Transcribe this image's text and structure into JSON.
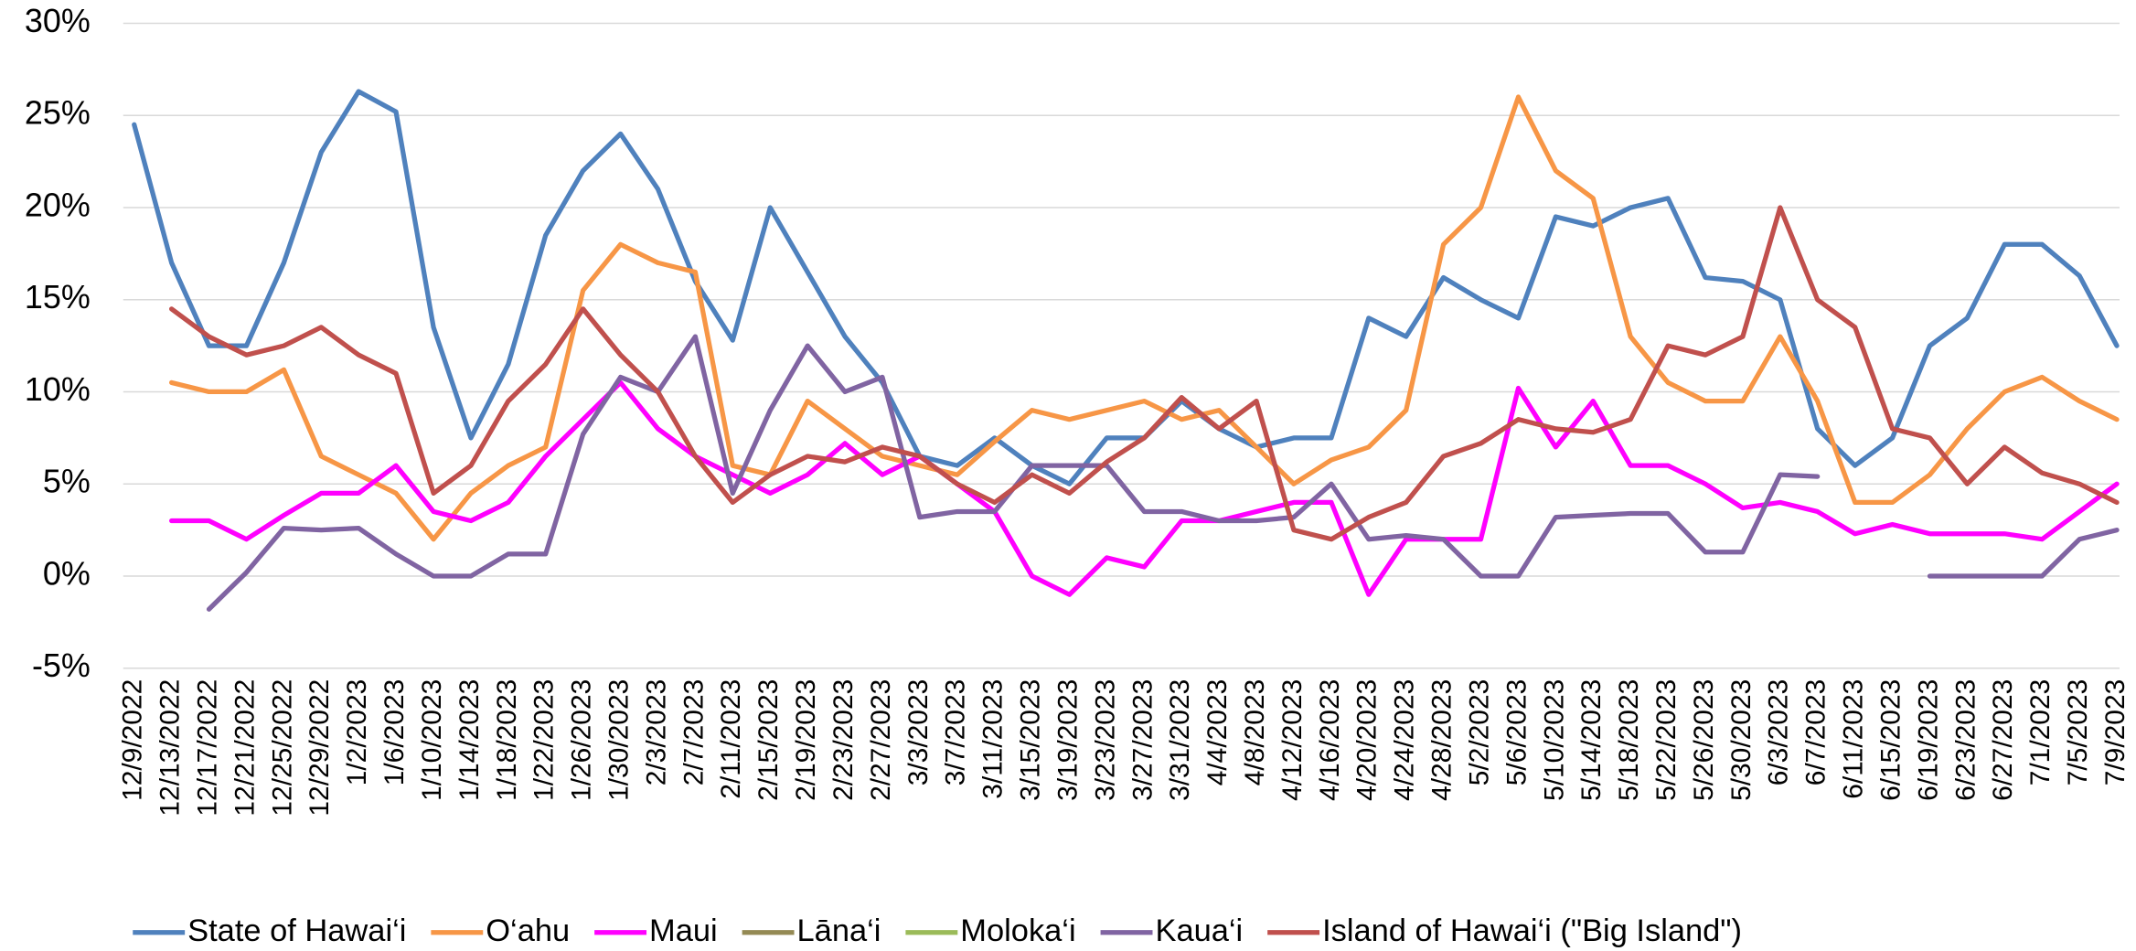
{
  "chart_data": {
    "type": "line",
    "categories": [
      "12/9/2022",
      "12/13/2022",
      "12/17/2022",
      "12/21/2022",
      "12/25/2022",
      "12/29/2022",
      "1/2/2023",
      "1/6/2023",
      "1/10/2023",
      "1/14/2023",
      "1/18/2023",
      "1/22/2023",
      "1/26/2023",
      "1/30/2023",
      "2/3/2023",
      "2/7/2023",
      "2/11/2023",
      "2/15/2023",
      "2/19/2023",
      "2/23/2023",
      "2/27/2023",
      "3/3/2023",
      "3/7/2023",
      "3/11/2023",
      "3/15/2023",
      "3/19/2023",
      "3/23/2023",
      "3/27/2023",
      "3/31/2023",
      "4/4/2023",
      "4/8/2023",
      "4/12/2023",
      "4/16/2023",
      "4/20/2023",
      "4/24/2023",
      "4/28/2023",
      "5/2/2023",
      "5/6/2023",
      "5/10/2023",
      "5/14/2023",
      "5/18/2023",
      "5/22/2023",
      "5/26/2023",
      "5/30/2023",
      "6/3/2023",
      "6/7/2023",
      "6/11/2023",
      "6/15/2023",
      "6/19/2023",
      "6/23/2023",
      "6/27/2023",
      "7/1/2023",
      "7/5/2023",
      "7/9/2023"
    ],
    "series": [
      {
        "name": "State of Hawai‘i",
        "color": "#4f81bd",
        "values": [
          24.5,
          17,
          12.5,
          12.5,
          17,
          23,
          26.3,
          25.2,
          13.5,
          7.5,
          11.5,
          18.5,
          22,
          24,
          21,
          16,
          12.8,
          20,
          16.5,
          13,
          10.5,
          6.5,
          6,
          7.5,
          6,
          5,
          7.5,
          7.5,
          9.5,
          8,
          7,
          7.5,
          7.5,
          14,
          13,
          16.2,
          15,
          14,
          19.5,
          19,
          20,
          20.5,
          16.2,
          16,
          15,
          8,
          6,
          7.5,
          12.5,
          14,
          18,
          18,
          16.3,
          12.5
        ]
      },
      {
        "name": "O‘ahu",
        "color": "#f79646",
        "values": [
          null,
          10.5,
          10,
          10,
          11.2,
          6.5,
          5.5,
          4.5,
          2,
          4.5,
          6,
          7,
          15.5,
          18,
          17,
          16.5,
          6,
          5.5,
          9.5,
          8,
          6.5,
          6,
          5.5,
          7.3,
          9,
          8.5,
          9,
          9.5,
          8.5,
          9,
          7,
          5,
          6.3,
          7,
          9,
          18,
          20,
          26,
          22,
          20.5,
          13,
          10.5,
          9.5,
          9.5,
          13,
          9.5,
          4,
          4,
          5.5,
          8,
          10,
          10.8,
          9.5,
          8.5
        ]
      },
      {
        "name": "Maui",
        "color": "#ff00ff",
        "values": [
          null,
          3,
          3,
          2,
          3.3,
          4.5,
          4.5,
          6,
          3.5,
          3,
          4,
          6.5,
          8.5,
          10.5,
          8,
          6.5,
          5.5,
          4.5,
          5.5,
          7.2,
          5.5,
          6.5,
          5,
          3.5,
          0,
          -1,
          1,
          0.5,
          3,
          3,
          3.5,
          4,
          4,
          -1,
          2,
          2,
          2,
          10.2,
          7,
          9.5,
          6,
          6,
          5,
          3.7,
          4,
          3.5,
          2.3,
          2.8,
          2.3,
          2.3,
          2.3,
          2,
          3.5,
          5
        ]
      },
      {
        "name": "Lāna‘i",
        "color": "#948a54",
        "values": [
          null,
          null,
          null,
          null,
          null,
          null,
          null,
          null,
          null,
          null,
          null,
          null,
          null,
          null,
          null,
          null,
          null,
          null,
          null,
          null,
          null,
          null,
          null,
          null,
          null,
          null,
          null,
          null,
          null,
          null,
          null,
          null,
          null,
          null,
          null,
          null,
          null,
          null,
          null,
          null,
          null,
          null,
          null,
          null,
          null,
          null,
          null,
          null,
          null,
          null,
          null,
          null,
          null,
          null
        ]
      },
      {
        "name": "Moloka‘i",
        "color": "#9bbb59",
        "values": [
          null,
          null,
          null,
          null,
          null,
          null,
          null,
          null,
          null,
          null,
          null,
          null,
          null,
          null,
          null,
          null,
          null,
          null,
          null,
          null,
          null,
          null,
          null,
          null,
          null,
          null,
          null,
          null,
          null,
          null,
          null,
          null,
          null,
          null,
          null,
          null,
          null,
          null,
          null,
          null,
          null,
          null,
          null,
          null,
          null,
          null,
          null,
          null,
          null,
          null,
          null,
          null,
          null,
          null
        ]
      },
      {
        "name": "Kaua‘i",
        "color": "#8064a2",
        "values": [
          null,
          null,
          -1.8,
          0.2,
          2.6,
          2.5,
          2.6,
          1.2,
          0,
          0,
          1.2,
          1.2,
          7.7,
          10.8,
          10,
          13,
          4.5,
          9,
          12.5,
          10,
          10.8,
          3.2,
          3.5,
          3.5,
          6,
          6,
          6,
          3.5,
          3.5,
          3,
          3,
          3.2,
          5,
          2,
          2.2,
          2,
          0,
          0,
          3.2,
          3.3,
          3.4,
          3.4,
          1.3,
          1.3,
          5.5,
          5.4,
          null,
          null,
          0,
          0,
          0,
          0,
          2,
          2.5
        ]
      },
      {
        "name": "Island of Hawai‘i (\"Big Island\")",
        "color": "#c0504d",
        "values": [
          null,
          14.5,
          13,
          12,
          12.5,
          13.5,
          12,
          11,
          4.5,
          6,
          9.5,
          11.5,
          14.5,
          12,
          10,
          6.5,
          4,
          5.5,
          6.5,
          6.2,
          7,
          6.5,
          5,
          4,
          5.5,
          4.5,
          6.2,
          7.5,
          9.7,
          8,
          9.5,
          2.5,
          2,
          3.2,
          4,
          6.5,
          7.2,
          8.5,
          8,
          7.8,
          8.5,
          12.5,
          12,
          13,
          20,
          15,
          13.5,
          8,
          7.5,
          5,
          7,
          5.6,
          5,
          4
        ]
      }
    ],
    "ylim": [
      -5,
      30
    ],
    "yticks": [
      {
        "value": -5,
        "label": "-5%"
      },
      {
        "value": 0,
        "label": "0%"
      },
      {
        "value": 5,
        "label": "5%"
      },
      {
        "value": 10,
        "label": "10%"
      },
      {
        "value": 15,
        "label": "15%"
      },
      {
        "value": 20,
        "label": "20%"
      },
      {
        "value": 25,
        "label": "25%"
      },
      {
        "value": 30,
        "label": "30%"
      }
    ],
    "grid": true,
    "legend": "bottom"
  }
}
